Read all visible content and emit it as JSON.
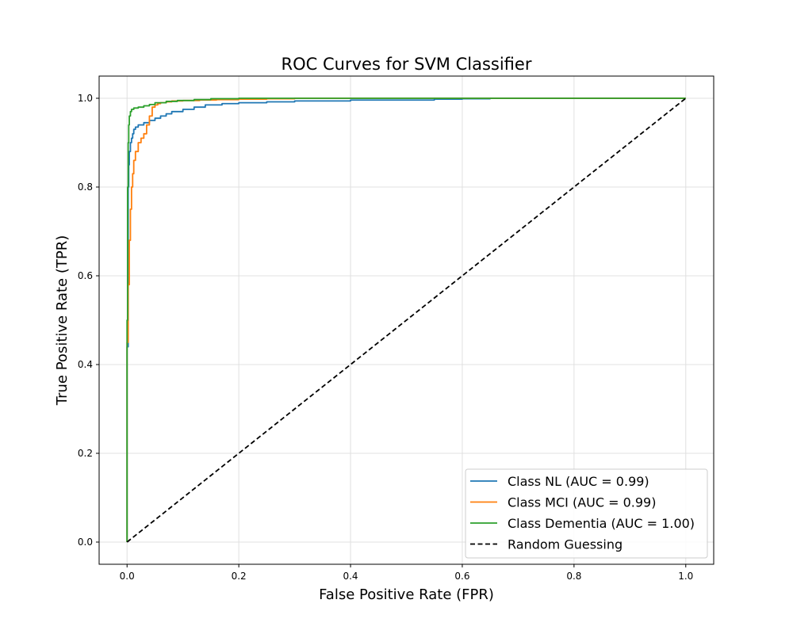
{
  "chart_data": {
    "type": "line",
    "title": "ROC Curves for SVM Classifier",
    "xlabel": "False Positive Rate (FPR)",
    "ylabel": "True Positive Rate (TPR)",
    "xlim": [
      -0.05,
      1.05
    ],
    "ylim": [
      -0.05,
      1.05
    ],
    "xticks": [
      0.0,
      0.2,
      0.4,
      0.6,
      0.8,
      1.0
    ],
    "yticks": [
      0.0,
      0.2,
      0.4,
      0.6,
      0.8,
      1.0
    ],
    "xtick_labels": [
      "0.0",
      "0.2",
      "0.4",
      "0.6",
      "0.8",
      "1.0"
    ],
    "ytick_labels": [
      "0.0",
      "0.2",
      "0.4",
      "0.6",
      "0.8",
      "1.0"
    ],
    "grid": true,
    "legend_position": "bottom-right",
    "series": [
      {
        "name": "Class NL (AUC = 0.99)",
        "color": "#1f77b4",
        "style": "solid",
        "step": true,
        "x": [
          0.0,
          0.0,
          0.002,
          0.003,
          0.004,
          0.006,
          0.008,
          0.01,
          0.012,
          0.015,
          0.02,
          0.03,
          0.04,
          0.05,
          0.06,
          0.07,
          0.08,
          0.1,
          0.12,
          0.14,
          0.17,
          0.2,
          0.25,
          0.3,
          0.4,
          0.55,
          0.6,
          0.65,
          0.8,
          1.0
        ],
        "y": [
          0.0,
          0.44,
          0.8,
          0.85,
          0.88,
          0.9,
          0.91,
          0.92,
          0.93,
          0.935,
          0.94,
          0.945,
          0.95,
          0.955,
          0.96,
          0.965,
          0.97,
          0.975,
          0.98,
          0.985,
          0.988,
          0.99,
          0.992,
          0.994,
          0.996,
          0.998,
          0.999,
          1.0,
          1.0,
          1.0
        ]
      },
      {
        "name": "Class MCI (AUC = 0.99)",
        "color": "#ff7f0e",
        "style": "solid",
        "step": true,
        "x": [
          0.0,
          0.0,
          0.002,
          0.004,
          0.006,
          0.008,
          0.01,
          0.012,
          0.015,
          0.02,
          0.025,
          0.03,
          0.035,
          0.04,
          0.045,
          0.05,
          0.055,
          0.06,
          0.07,
          0.08,
          0.1,
          0.13,
          0.16,
          0.2,
          0.25,
          0.3,
          0.43,
          1.0
        ],
        "y": [
          0.0,
          0.45,
          0.58,
          0.68,
          0.75,
          0.8,
          0.83,
          0.86,
          0.88,
          0.9,
          0.91,
          0.92,
          0.94,
          0.96,
          0.98,
          0.985,
          0.988,
          0.99,
          0.992,
          0.994,
          0.995,
          0.996,
          0.997,
          0.998,
          0.999,
          1.0,
          1.0,
          1.0
        ]
      },
      {
        "name": "Class Dementia (AUC = 1.00)",
        "color": "#2ca02c",
        "style": "solid",
        "step": true,
        "x": [
          0.0,
          0.0,
          0.001,
          0.002,
          0.003,
          0.004,
          0.006,
          0.008,
          0.012,
          0.02,
          0.03,
          0.04,
          0.05,
          0.07,
          0.09,
          0.12,
          0.15,
          0.2,
          1.0
        ],
        "y": [
          0.0,
          0.5,
          0.8,
          0.9,
          0.94,
          0.96,
          0.97,
          0.975,
          0.978,
          0.98,
          0.983,
          0.986,
          0.99,
          0.993,
          0.995,
          0.997,
          0.999,
          1.0,
          1.0
        ]
      },
      {
        "name": "Random Guessing",
        "color": "#000000",
        "style": "dashed",
        "step": false,
        "x": [
          0.0,
          1.0
        ],
        "y": [
          0.0,
          1.0
        ]
      }
    ]
  }
}
